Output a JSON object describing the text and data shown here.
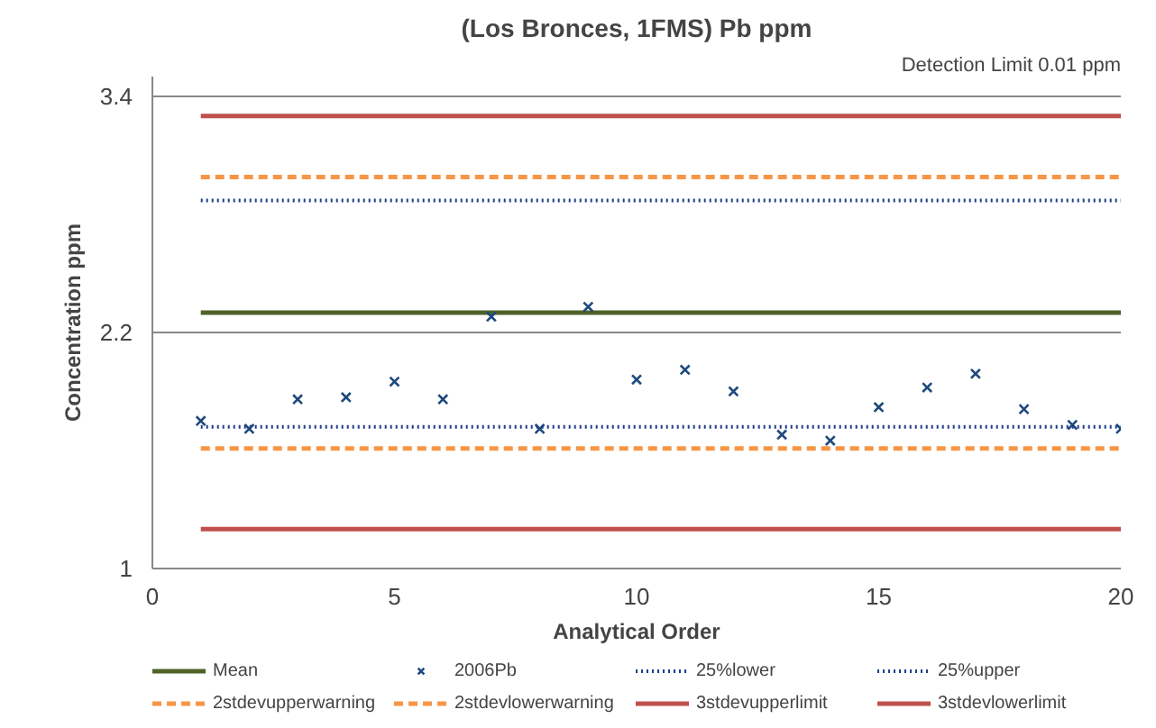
{
  "chart_data": {
    "type": "scatter",
    "title": "(Los Bronces, 1FMS) Pb ppm",
    "xlabel": "Analytical Order",
    "ylabel": "Concentration ppm",
    "annotations": [
      "Detection Limit 0.01 ppm"
    ],
    "xlim": [
      0,
      20
    ],
    "xticks": [
      0,
      5,
      10,
      15,
      20
    ],
    "ylim": [
      1,
      3.5
    ],
    "yticks": [
      1,
      2.2,
      3.4
    ],
    "grid": "y",
    "legend": "bottom",
    "series": [
      {
        "name": "Mean",
        "type": "line",
        "color": "#4f6228",
        "line_style": "solid",
        "x": [
          1,
          20
        ],
        "values": [
          2.3,
          2.3
        ]
      },
      {
        "name": "2006Pb",
        "marker": "cross",
        "color": "#1f497d",
        "x": [
          1,
          2,
          3,
          4,
          5,
          6,
          7,
          8,
          9,
          10,
          11,
          12,
          13,
          14,
          15,
          16,
          17,
          18,
          19,
          20
        ],
        "values": [
          1.75,
          1.71,
          1.86,
          1.87,
          1.95,
          1.86,
          2.28,
          1.71,
          2.33,
          1.96,
          2.01,
          1.9,
          1.68,
          1.65,
          1.82,
          1.92,
          1.99,
          1.81,
          1.73,
          1.71
        ]
      },
      {
        "name": "25%lower",
        "type": "line",
        "color": "#1f3d8a",
        "line_style": "dotted",
        "x": [
          1,
          20
        ],
        "values": [
          1.72,
          1.72
        ]
      },
      {
        "name": "25%upper",
        "type": "line",
        "color": "#1f3d8a",
        "line_style": "dotted",
        "x": [
          1,
          20
        ],
        "values": [
          2.87,
          2.87
        ]
      },
      {
        "name": "2stdevupperwarning",
        "type": "line",
        "color": "#f79646",
        "line_style": "dashed",
        "x": [
          1,
          20
        ],
        "values": [
          2.99,
          2.99
        ]
      },
      {
        "name": "2stdevlowerwarning",
        "type": "line",
        "color": "#f79646",
        "line_style": "dashed",
        "x": [
          1,
          20
        ],
        "values": [
          1.61,
          1.61
        ]
      },
      {
        "name": "3stdevupperlimit",
        "type": "line",
        "color": "#c0504d",
        "line_style": "solid",
        "x": [
          1,
          20
        ],
        "values": [
          3.3,
          3.3
        ]
      },
      {
        "name": "3stdevlowerlimit",
        "type": "line",
        "color": "#c0504d",
        "line_style": "solid",
        "x": [
          1,
          20
        ],
        "values": [
          1.2,
          1.2
        ]
      }
    ]
  }
}
